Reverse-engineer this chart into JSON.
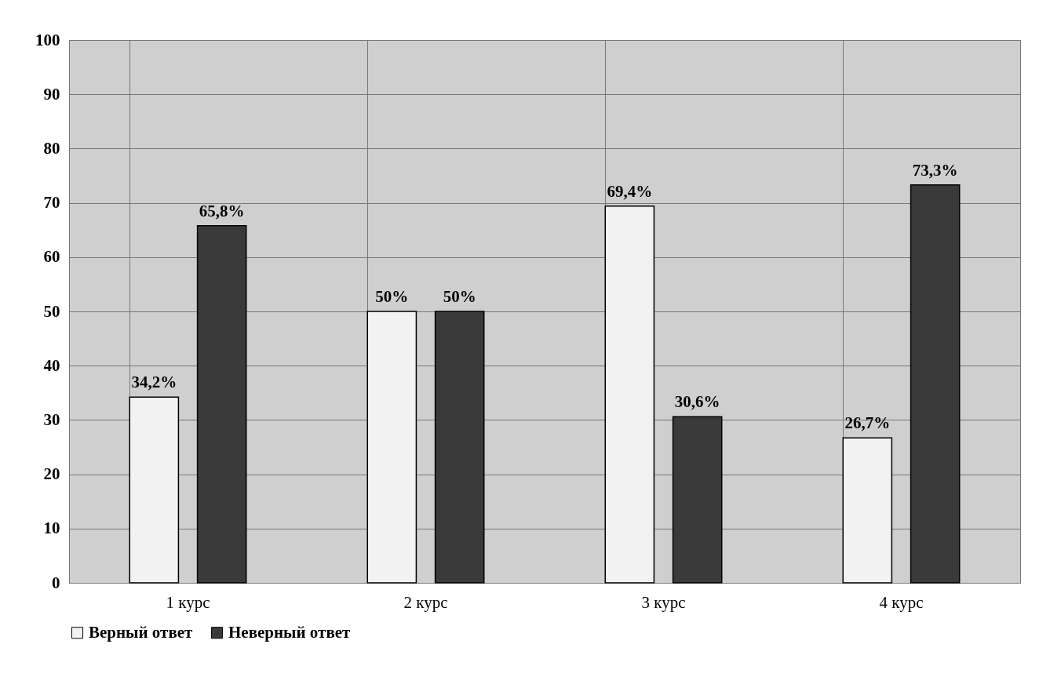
{
  "chart_data": {
    "type": "bar",
    "categories": [
      "1 курс",
      "2 курс",
      "3 курс",
      "4 курс"
    ],
    "series": [
      {
        "name": "Верный ответ",
        "color": "#f2f2f2",
        "values": [
          34.2,
          50,
          69.4,
          26.7
        ],
        "value_labels": [
          "34,2%",
          "50%",
          "69,4%",
          "26,7%"
        ]
      },
      {
        "name": "Неверный ответ",
        "color": "#3a3a3a",
        "values": [
          65.8,
          50,
          30.6,
          73.3
        ],
        "value_labels": [
          "65,8%",
          "50%",
          "30,6%",
          "73,3%"
        ]
      }
    ],
    "ylim": [
      0,
      100
    ],
    "yticks": [
      0,
      10,
      20,
      30,
      40,
      50,
      60,
      70,
      80,
      90,
      100
    ],
    "grid": true,
    "legend": "bottom"
  }
}
